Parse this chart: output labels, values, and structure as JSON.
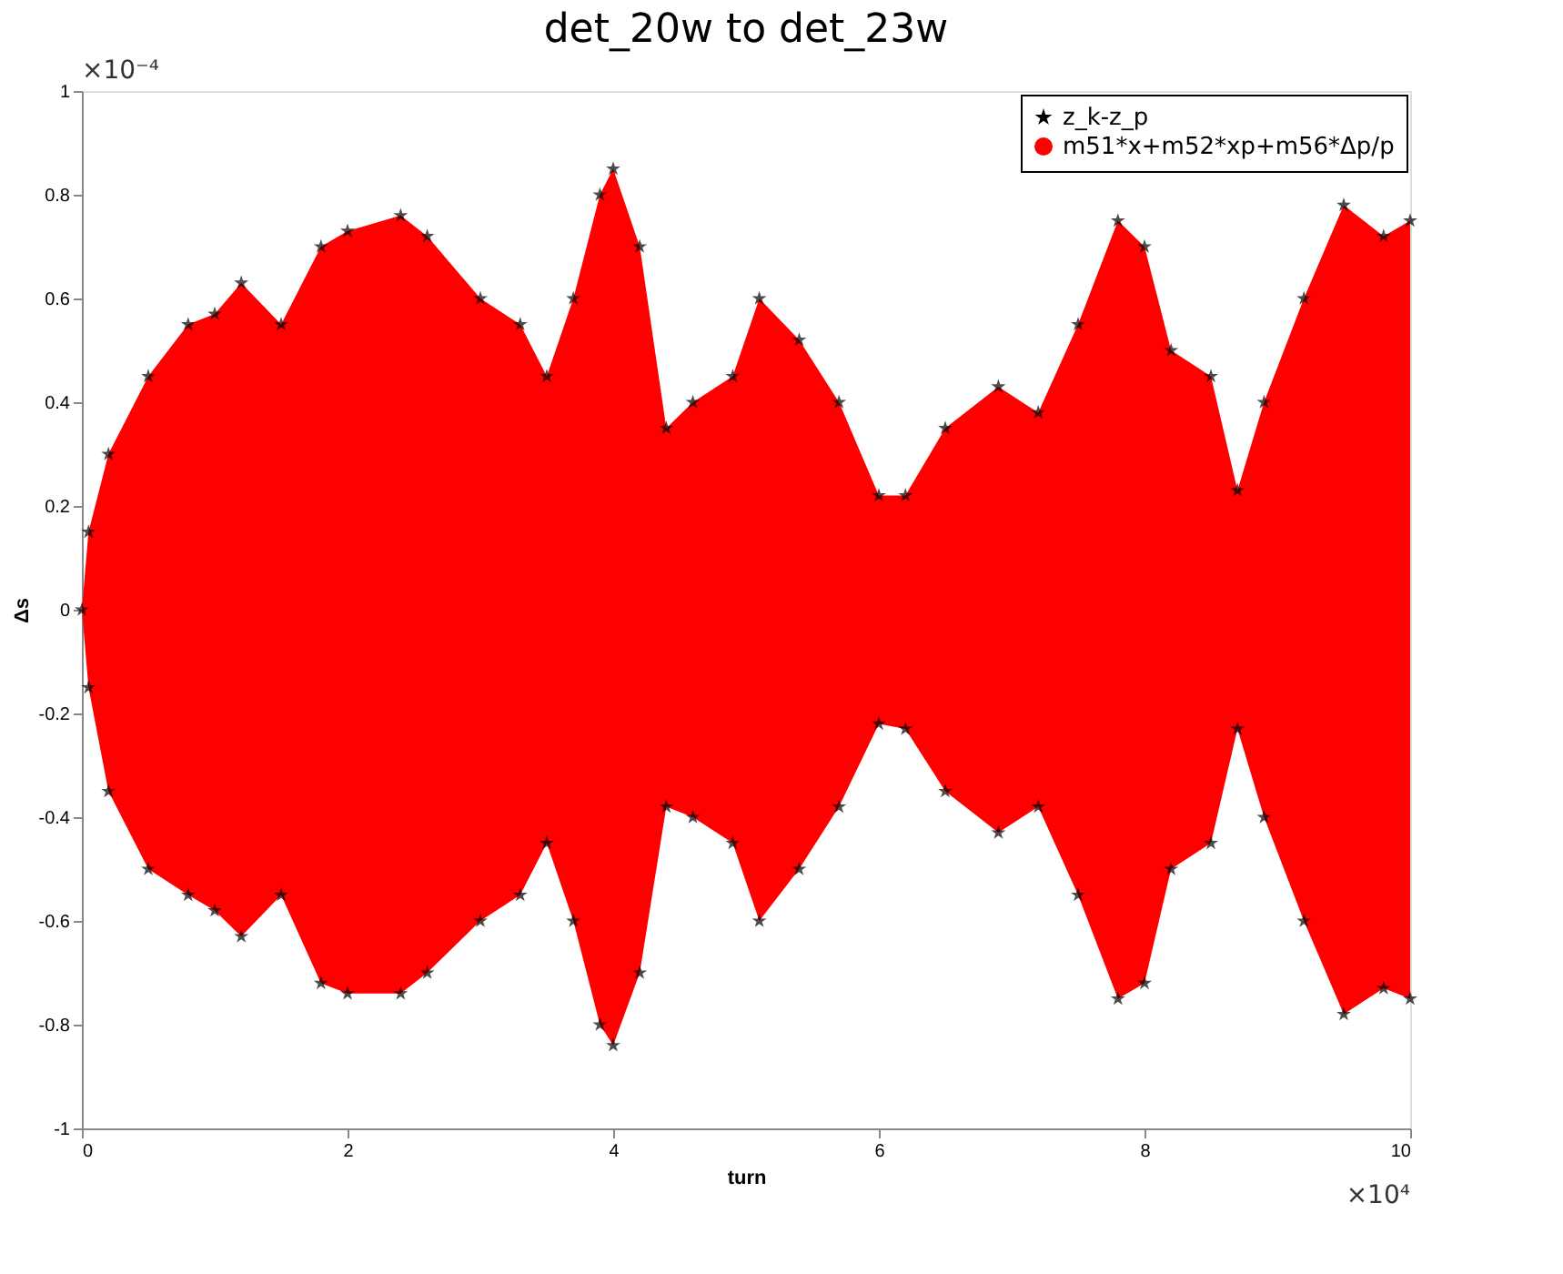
{
  "chart_data": {
    "type": "area",
    "title": "det_20w to det_23w",
    "xlabel": "turn",
    "ylabel": "Δs",
    "annotations": [
      "×10⁻⁴",
      "×10⁴"
    ],
    "xlim": [
      0,
      10
    ],
    "xticks": [
      0,
      2,
      4,
      6,
      8,
      10
    ],
    "ylim": [
      -1,
      1
    ],
    "yticks": [
      -1,
      -0.8,
      -0.6,
      -0.4,
      -0.2,
      0,
      0.2,
      0.4,
      0.6,
      0.8,
      1
    ],
    "grid": false,
    "legend": "top right",
    "series": [
      {
        "name": "z_k-z_p",
        "color": "#000000",
        "type": "scatter",
        "marker": "star",
        "x": [
          0,
          0.05,
          0.2,
          0.5,
          0.8,
          1.0,
          1.2,
          1.5,
          1.8,
          2.0,
          2.4,
          2.6,
          3.0,
          3.3,
          3.5,
          3.7,
          3.9,
          4.0,
          4.2,
          4.4,
          4.6,
          4.9,
          5.1,
          5.4,
          5.7,
          6.0,
          6.2,
          6.5,
          6.9,
          7.2,
          7.5,
          7.8,
          8.0,
          8.2,
          8.5,
          8.7,
          8.9,
          9.2,
          9.5,
          9.8,
          10,
          0.05,
          0.2,
          0.5,
          0.8,
          1.0,
          1.2,
          1.5,
          1.8,
          2.0,
          2.4,
          2.6,
          3.0,
          3.3,
          3.5,
          3.7,
          3.9,
          4.0,
          4.2,
          4.4,
          4.6,
          4.9,
          5.1,
          5.4,
          5.7,
          6.0,
          6.2,
          6.5,
          6.9,
          7.2,
          7.5,
          7.8,
          8.0,
          8.2,
          8.5,
          8.7,
          8.9,
          9.2,
          9.5,
          9.8,
          10
        ],
        "values": [
          0,
          0.15,
          0.3,
          0.45,
          0.55,
          0.57,
          0.63,
          0.55,
          0.7,
          0.73,
          0.76,
          0.72,
          0.6,
          0.55,
          0.45,
          0.6,
          0.8,
          0.85,
          0.7,
          0.35,
          0.4,
          0.45,
          0.6,
          0.52,
          0.4,
          0.22,
          0.22,
          0.35,
          0.43,
          0.38,
          0.55,
          0.75,
          0.7,
          0.5,
          0.45,
          0.23,
          0.4,
          0.6,
          0.78,
          0.72,
          0.75,
          -0.15,
          -0.35,
          -0.5,
          -0.55,
          -0.58,
          -0.63,
          -0.55,
          -0.72,
          -0.74,
          -0.74,
          -0.7,
          -0.6,
          -0.55,
          -0.45,
          -0.6,
          -0.8,
          -0.84,
          -0.7,
          -0.38,
          -0.4,
          -0.45,
          -0.6,
          -0.5,
          -0.38,
          -0.22,
          -0.23,
          -0.35,
          -0.43,
          -0.38,
          -0.55,
          -0.75,
          -0.72,
          -0.5,
          -0.45,
          -0.23,
          -0.4,
          -0.6,
          -0.78,
          -0.73,
          -0.75
        ]
      },
      {
        "name": "m51*x+m52*xp+m56*Δp/p",
        "color": "#ff0000",
        "x": [
          0,
          0.05,
          0.2,
          0.5,
          0.8,
          1.0,
          1.2,
          1.5,
          1.8,
          2.0,
          2.4,
          2.6,
          3.0,
          3.3,
          3.5,
          3.7,
          3.9,
          4.0,
          4.2,
          4.4,
          4.6,
          4.9,
          5.1,
          5.4,
          5.7,
          6.0,
          6.2,
          6.5,
          6.9,
          7.2,
          7.5,
          7.8,
          8.0,
          8.2,
          8.5,
          8.7,
          8.9,
          9.2,
          9.5,
          9.8,
          10
        ],
        "values": [
          0,
          0.15,
          0.3,
          0.45,
          0.55,
          0.57,
          0.63,
          0.55,
          0.7,
          0.73,
          0.76,
          0.72,
          0.6,
          0.55,
          0.45,
          0.6,
          0.8,
          0.85,
          0.7,
          0.35,
          0.4,
          0.45,
          0.6,
          0.52,
          0.4,
          0.22,
          0.22,
          0.35,
          0.43,
          0.38,
          0.55,
          0.75,
          0.7,
          0.5,
          0.45,
          0.23,
          0.4,
          0.6,
          0.78,
          0.72,
          0.75
        ]
      },
      {
        "color": "#ff0000",
        "x": [
          0,
          0.05,
          0.2,
          0.5,
          0.8,
          1.0,
          1.2,
          1.5,
          1.8,
          2.0,
          2.4,
          2.6,
          3.0,
          3.3,
          3.5,
          3.7,
          3.9,
          4.0,
          4.2,
          4.4,
          4.6,
          4.9,
          5.1,
          5.4,
          5.7,
          6.0,
          6.2,
          6.5,
          6.9,
          7.2,
          7.5,
          7.8,
          8.0,
          8.2,
          8.5,
          8.7,
          8.9,
          9.2,
          9.5,
          9.8,
          10
        ],
        "values": [
          0,
          -0.15,
          -0.35,
          -0.5,
          -0.55,
          -0.58,
          -0.63,
          -0.55,
          -0.72,
          -0.74,
          -0.74,
          -0.7,
          -0.6,
          -0.55,
          -0.45,
          -0.6,
          -0.8,
          -0.84,
          -0.7,
          -0.38,
          -0.4,
          -0.45,
          -0.6,
          -0.5,
          -0.38,
          -0.22,
          -0.23,
          -0.35,
          -0.43,
          -0.38,
          -0.55,
          -0.75,
          -0.72,
          -0.5,
          -0.45,
          -0.23,
          -0.4,
          -0.6,
          -0.78,
          -0.73,
          -0.75
        ]
      }
    ]
  }
}
